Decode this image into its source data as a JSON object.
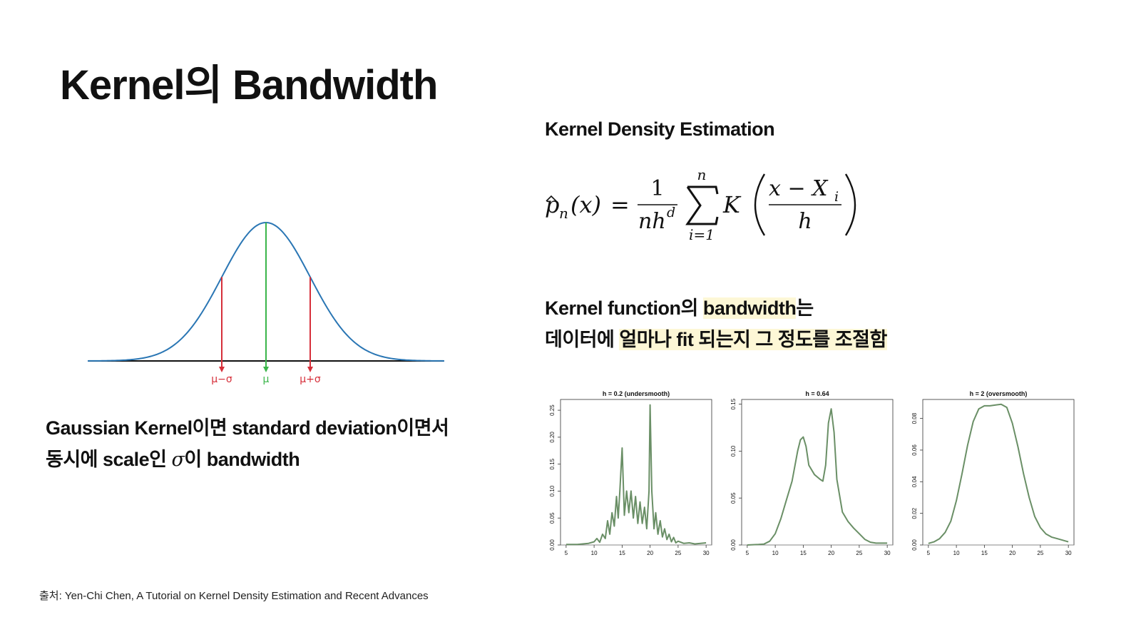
{
  "title": "Kernel의 Bandwidth",
  "gaussian": {
    "labels": {
      "minus": "μ−σ",
      "center": "μ",
      "plus": "μ+σ"
    },
    "colors": {
      "curve": "#2a76b4",
      "sigma": "#d62f3a",
      "mean": "#3ab54a",
      "axis": "#111111"
    }
  },
  "left_text": {
    "line1": "Gaussian Kernel이면 standard deviation이면서",
    "line2_pre": "동시에 scale인 ",
    "sigma": "σ",
    "line2_post": "이 bandwidth"
  },
  "kde": {
    "heading": "Kernel Density Estimation",
    "formula": {
      "hat_p": "p",
      "sub_n": "n",
      "arg": "(x)",
      "eq": "=",
      "num": "1",
      "den_nh": "nh",
      "den_d": "d",
      "sum_top": "n",
      "sum_bottom": "i=1",
      "K": "K",
      "frac_num": "x − X",
      "frac_num_sub": "i",
      "frac_den": "h"
    }
  },
  "bandwidth_text": {
    "l1_a": "Kernel function의 ",
    "l1_b": "bandwidth",
    "l1_c": "는",
    "l2_a": "데이터에 ",
    "l2_b": "얼마나 fit 되는지 그 정도를 조절함"
  },
  "chart_data": [
    {
      "type": "line",
      "title": "h = 0.2 (undersmooth)",
      "xlim": [
        4,
        31
      ],
      "ylim": [
        0,
        0.27
      ],
      "xticks": [
        "5",
        "10",
        "15",
        "20",
        "25",
        "30"
      ],
      "yticks": [
        "0.00",
        "0.05",
        "0.10",
        "0.15",
        "0.20",
        "0.25"
      ],
      "x": [
        5,
        7,
        9,
        10,
        10.5,
        11,
        11.5,
        12,
        12.4,
        12.8,
        13.2,
        13.6,
        14,
        14.3,
        14.6,
        15,
        15.4,
        15.8,
        16.2,
        16.6,
        17,
        17.4,
        17.8,
        18.2,
        18.6,
        19,
        19.4,
        19.8,
        20,
        20.3,
        20.7,
        21,
        21.4,
        21.8,
        22.2,
        22.6,
        23,
        23.4,
        23.8,
        24.2,
        24.6,
        25,
        26,
        27,
        28,
        29,
        30
      ],
      "y": [
        0.001,
        0.001,
        0.003,
        0.006,
        0.012,
        0.005,
        0.02,
        0.012,
        0.045,
        0.02,
        0.06,
        0.035,
        0.09,
        0.05,
        0.1,
        0.18,
        0.055,
        0.1,
        0.06,
        0.1,
        0.05,
        0.09,
        0.04,
        0.08,
        0.04,
        0.07,
        0.03,
        0.1,
        0.26,
        0.1,
        0.03,
        0.06,
        0.02,
        0.045,
        0.015,
        0.03,
        0.01,
        0.02,
        0.006,
        0.014,
        0.004,
        0.007,
        0.003,
        0.004,
        0.002,
        0.003,
        0.004
      ],
      "color": "#6a8f66"
    },
    {
      "type": "line",
      "title": "h = 0.64",
      "xlim": [
        4,
        31
      ],
      "ylim": [
        0,
        0.155
      ],
      "xticks": [
        "5",
        "10",
        "15",
        "20",
        "25",
        "30"
      ],
      "yticks": [
        "0.00",
        "0.05",
        "0.10",
        "0.15"
      ],
      "x": [
        5,
        7,
        8,
        9,
        10,
        11,
        12,
        13,
        14,
        14.5,
        15,
        15.5,
        16,
        17,
        18,
        18.5,
        19,
        19.5,
        20,
        20.5,
        21,
        22,
        23,
        24,
        25,
        26,
        27,
        28,
        29,
        30
      ],
      "y": [
        0.0,
        0.0005,
        0.001,
        0.004,
        0.012,
        0.028,
        0.048,
        0.068,
        0.1,
        0.112,
        0.115,
        0.105,
        0.085,
        0.075,
        0.07,
        0.068,
        0.085,
        0.13,
        0.145,
        0.12,
        0.07,
        0.035,
        0.025,
        0.018,
        0.012,
        0.006,
        0.003,
        0.002,
        0.002,
        0.002
      ],
      "color": "#6a8f66"
    },
    {
      "type": "line",
      "title": "h = 2 (oversmooth)",
      "xlim": [
        4,
        31
      ],
      "ylim": [
        0,
        0.092
      ],
      "xticks": [
        "5",
        "10",
        "15",
        "20",
        "25",
        "30"
      ],
      "yticks": [
        "0.00",
        "0.02",
        "0.04",
        "0.06",
        "0.08"
      ],
      "x": [
        5,
        6,
        7,
        8,
        9,
        10,
        11,
        12,
        13,
        14,
        15,
        16,
        17,
        18,
        19,
        20,
        21,
        22,
        23,
        24,
        25,
        26,
        27,
        28,
        29,
        30
      ],
      "y": [
        0.001,
        0.002,
        0.004,
        0.008,
        0.015,
        0.028,
        0.045,
        0.063,
        0.078,
        0.086,
        0.088,
        0.088,
        0.0885,
        0.089,
        0.087,
        0.077,
        0.062,
        0.045,
        0.03,
        0.018,
        0.011,
        0.007,
        0.005,
        0.004,
        0.003,
        0.002
      ],
      "color": "#6a8f66"
    }
  ],
  "source": "출처: Yen-Chi Chen, A Tutorial on Kernel Density Estimation and Recent Advances"
}
